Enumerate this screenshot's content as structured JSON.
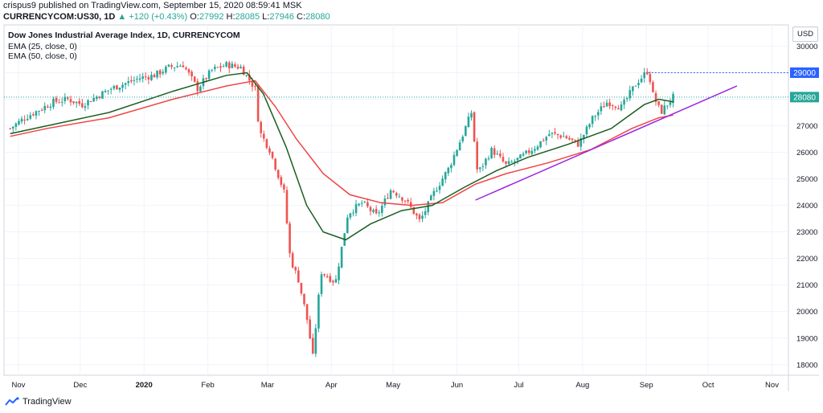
{
  "header": {
    "publisher": "crispus9",
    "published_text": "published on TradingView.com, September 15, 2020 08:59:41 MSK",
    "symbol": "CURRENCYCOM:US30, 1D",
    "change": "+120 (+0.43%)",
    "open_label": "O:",
    "open": "27992",
    "high_label": "H:",
    "high": "28085",
    "low_label": "L:",
    "low": "27946",
    "close_label": "C:",
    "close": "28080"
  },
  "legend": {
    "title": "Dow Jones Industrial Average Index, 1D, CURRENCYCOM",
    "ema25": "EMA (25, close, 0)",
    "ema50": "EMA (50, close, 0)"
  },
  "currency_button": "USD",
  "footer": {
    "brand": "TradingView"
  },
  "colors": {
    "up": "#26a69a",
    "down": "#ef5350",
    "ema25": "#1b5e20",
    "ema50": "#ef4444",
    "trendline": "#9c27e0",
    "level_line": "#2962ff"
  },
  "chart_data": {
    "type": "candlestick",
    "title": "Dow Jones Industrial Average Index, 1D, CURRENCYCOM",
    "ylim": [
      17600,
      30800
    ],
    "y_ticks": [
      "18000",
      "19000",
      "20000",
      "21000",
      "22000",
      "23000",
      "24000",
      "25000",
      "26000",
      "27000",
      "28000",
      "29000",
      "30000"
    ],
    "x_ticks": [
      "Nov",
      "Dec",
      "2020",
      "Feb",
      "Mar",
      "Apr",
      "May",
      "Jun",
      "Jul",
      "Aug",
      "Sep",
      "Oct",
      "Nov"
    ],
    "x_tick_dates": [
      "2019-11-01",
      "2019-12-01",
      "2020-01-01",
      "2020-02-01",
      "2020-03-01",
      "2020-04-01",
      "2020-05-01",
      "2020-06-01",
      "2020-07-01",
      "2020-08-01",
      "2020-09-01",
      "2020-10-01",
      "2020-11-01"
    ],
    "price_label": "28080",
    "level_label": "29000",
    "level_value": 29000,
    "trendline": {
      "start": [
        "2020-06-10",
        24200
      ],
      "end": [
        "2020-10-15",
        28500
      ]
    },
    "closes": [
      [
        "2019-10-28",
        26900
      ],
      [
        "2019-11-04",
        27300
      ],
      [
        "2019-11-11",
        27600
      ],
      [
        "2019-11-18",
        27900
      ],
      [
        "2019-11-25",
        28000
      ],
      [
        "2019-12-02",
        27800
      ],
      [
        "2019-12-09",
        28100
      ],
      [
        "2019-12-16",
        28400
      ],
      [
        "2019-12-23",
        28600
      ],
      [
        "2019-12-30",
        28800
      ],
      [
        "2020-01-06",
        28900
      ],
      [
        "2020-01-13",
        29200
      ],
      [
        "2020-01-20",
        29300
      ],
      [
        "2020-01-27",
        28400
      ],
      [
        "2020-02-03",
        29100
      ],
      [
        "2020-02-10",
        29300
      ],
      [
        "2020-02-17",
        29200
      ],
      [
        "2020-02-24",
        28400
      ],
      [
        "2020-02-26",
        26800
      ],
      [
        "2020-03-02",
        26100
      ],
      [
        "2020-03-09",
        24500
      ],
      [
        "2020-03-12",
        22000
      ],
      [
        "2020-03-16",
        21200
      ],
      [
        "2020-03-20",
        19800
      ],
      [
        "2020-03-23",
        18300
      ],
      [
        "2020-03-27",
        21500
      ],
      [
        "2020-04-03",
        21100
      ],
      [
        "2020-04-09",
        23700
      ],
      [
        "2020-04-16",
        24100
      ],
      [
        "2020-04-23",
        23600
      ],
      [
        "2020-04-30",
        24600
      ],
      [
        "2020-05-07",
        24200
      ],
      [
        "2020-05-14",
        23400
      ],
      [
        "2020-05-21",
        24500
      ],
      [
        "2020-05-28",
        25400
      ],
      [
        "2020-06-04",
        26700
      ],
      [
        "2020-06-08",
        27500
      ],
      [
        "2020-06-11",
        25200
      ],
      [
        "2020-06-18",
        26100
      ],
      [
        "2020-06-25",
        25500
      ],
      [
        "2020-07-02",
        25800
      ],
      [
        "2020-07-09",
        26200
      ],
      [
        "2020-07-16",
        26700
      ],
      [
        "2020-07-23",
        26600
      ],
      [
        "2020-07-30",
        26300
      ],
      [
        "2020-08-06",
        27300
      ],
      [
        "2020-08-13",
        27900
      ],
      [
        "2020-08-20",
        27700
      ],
      [
        "2020-08-27",
        28600
      ],
      [
        "2020-09-02",
        29100
      ],
      [
        "2020-09-04",
        28200
      ],
      [
        "2020-09-08",
        27500
      ],
      [
        "2020-09-10",
        27700
      ],
      [
        "2020-09-14",
        28080
      ]
    ],
    "ema25": [
      [
        "2019-10-28",
        26700
      ],
      [
        "2019-11-15",
        27000
      ],
      [
        "2019-12-15",
        27500
      ],
      [
        "2020-01-15",
        28300
      ],
      [
        "2020-02-10",
        28900
      ],
      [
        "2020-02-20",
        29000
      ],
      [
        "2020-02-28",
        28200
      ],
      [
        "2020-03-10",
        26200
      ],
      [
        "2020-03-20",
        24000
      ],
      [
        "2020-03-28",
        23000
      ],
      [
        "2020-04-08",
        22700
      ],
      [
        "2020-04-20",
        23300
      ],
      [
        "2020-05-05",
        23800
      ],
      [
        "2020-05-20",
        24000
      ],
      [
        "2020-06-05",
        24700
      ],
      [
        "2020-06-20",
        25300
      ],
      [
        "2020-07-05",
        25800
      ],
      [
        "2020-07-25",
        26300
      ],
      [
        "2020-08-15",
        26900
      ],
      [
        "2020-08-31",
        27800
      ],
      [
        "2020-09-07",
        28000
      ],
      [
        "2020-09-14",
        27900
      ]
    ],
    "ema50": [
      [
        "2019-10-28",
        26600
      ],
      [
        "2019-11-15",
        26900
      ],
      [
        "2019-12-15",
        27300
      ],
      [
        "2020-01-15",
        28000
      ],
      [
        "2020-02-10",
        28500
      ],
      [
        "2020-02-24",
        28700
      ],
      [
        "2020-03-05",
        27700
      ],
      [
        "2020-03-15",
        26500
      ],
      [
        "2020-03-28",
        25200
      ],
      [
        "2020-04-10",
        24400
      ],
      [
        "2020-04-25",
        24100
      ],
      [
        "2020-05-10",
        24000
      ],
      [
        "2020-05-25",
        24100
      ],
      [
        "2020-06-10",
        24800
      ],
      [
        "2020-06-25",
        25200
      ],
      [
        "2020-07-15",
        25600
      ],
      [
        "2020-08-05",
        26100
      ],
      [
        "2020-08-25",
        26900
      ],
      [
        "2020-09-07",
        27300
      ],
      [
        "2020-09-14",
        27400
      ]
    ]
  }
}
